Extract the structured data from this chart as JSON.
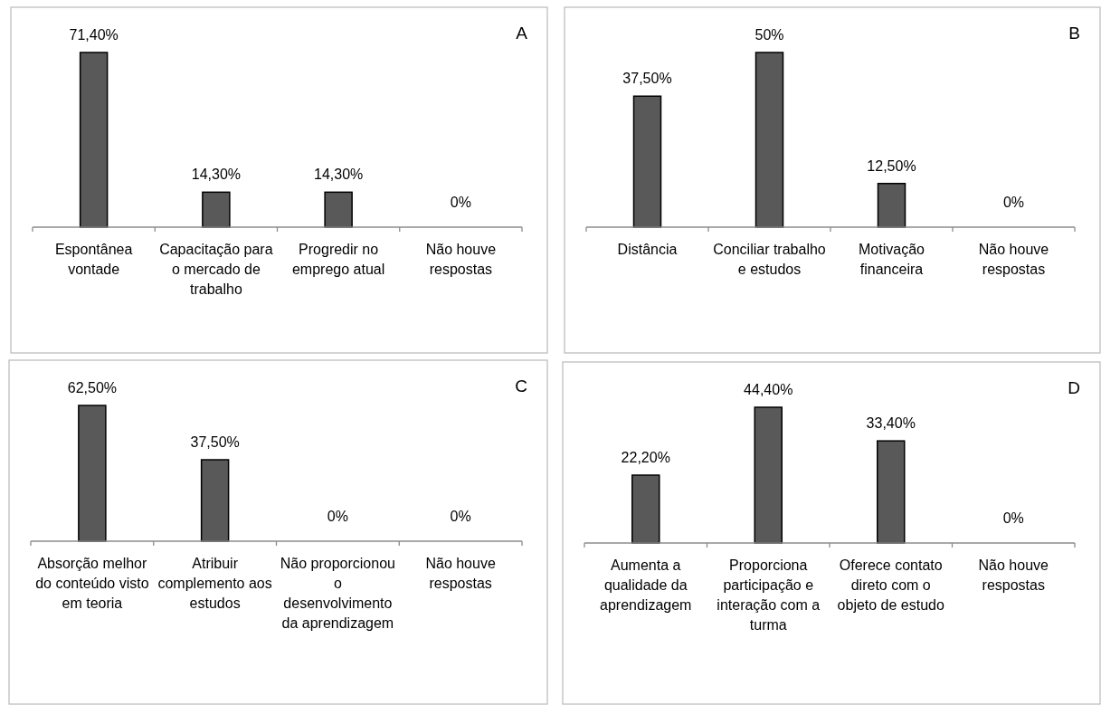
{
  "chart_data": [
    {
      "type": "bar",
      "title": "A",
      "categories": [
        "Espontânea vontade",
        "Capacitação para o mercado de trabalho",
        "Progredir no emprego atual",
        "Não houve respostas"
      ],
      "values": [
        71.4,
        14.3,
        14.3,
        0
      ],
      "value_labels": [
        "71,40%",
        "14,30%",
        "14,30%",
        "0%"
      ],
      "color": "#595959"
    },
    {
      "type": "bar",
      "title": "B",
      "categories": [
        "Distância",
        "Conciliar trabalho e estudos",
        "Motivação financeira",
        "Não houve respostas"
      ],
      "values": [
        37.5,
        50,
        12.5,
        0
      ],
      "value_labels": [
        "37,50%",
        "50%",
        "12,50%",
        "0%"
      ],
      "color": "#595959"
    },
    {
      "type": "bar",
      "title": "C",
      "categories": [
        "Absorção melhor do conteúdo visto em teoria",
        "Atribuir complemento aos estudos",
        "Não proporcionou o desenvolvimento da aprendizagem",
        "Não houve respostas"
      ],
      "values": [
        62.5,
        37.5,
        0,
        0
      ],
      "value_labels": [
        "62,50%",
        "37,50%",
        "0%",
        "0%"
      ],
      "color": "#595959"
    },
    {
      "type": "bar",
      "title": "D",
      "categories": [
        "Aumenta a qualidade da aprendizagem",
        "Proporciona participação e interação com a turma",
        "Oferece contato direto com o objeto de estudo",
        "Não houve respostas"
      ],
      "values": [
        22.2,
        44.4,
        33.4,
        0
      ],
      "value_labels": [
        "22,20%",
        "44,40%",
        "33,40%",
        "0%"
      ],
      "color": "#595959"
    }
  ]
}
